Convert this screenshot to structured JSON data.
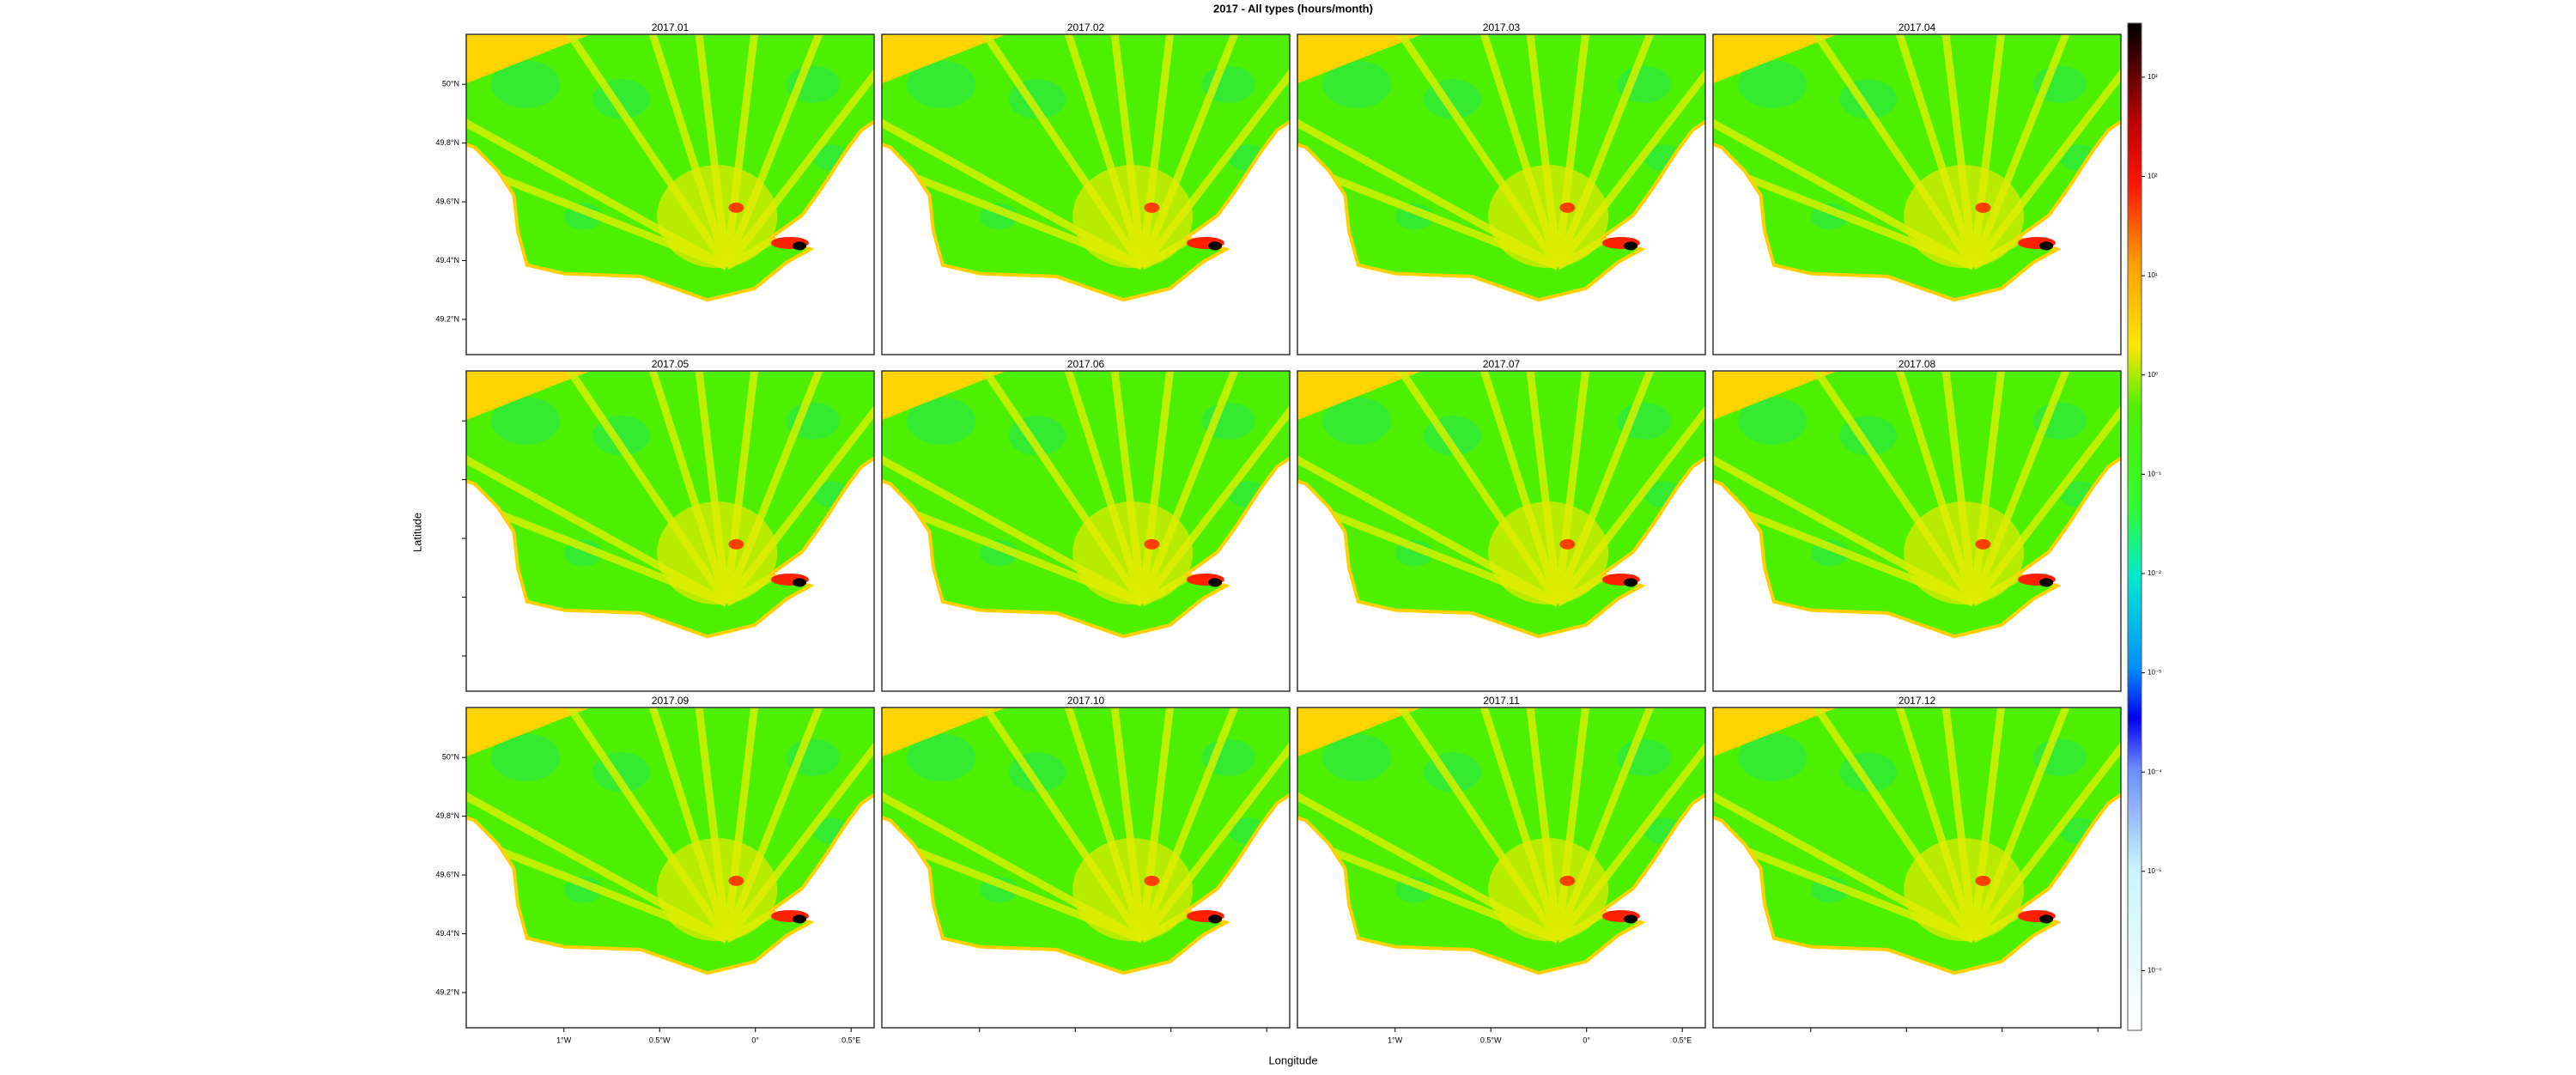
{
  "chart_data": {
    "type": "map",
    "title": "2017 - All types (hours/month)",
    "xlabel": "Longitude",
    "ylabel": "Latitude",
    "panels": [
      {
        "title": "2017.01"
      },
      {
        "title": "2017.02"
      },
      {
        "title": "2017.03"
      },
      {
        "title": "2017.04"
      },
      {
        "title": "2017.05"
      },
      {
        "title": "2017.06"
      },
      {
        "title": "2017.07"
      },
      {
        "title": "2017.08"
      },
      {
        "title": "2017.09"
      },
      {
        "title": "2017.10"
      },
      {
        "title": "2017.11"
      },
      {
        "title": "2017.12"
      }
    ],
    "xlim": [
      -1.51,
      0.62
    ],
    "ylim": [
      49.08,
      50.17
    ],
    "xticks": [
      {
        "value": -1,
        "label": "1°W"
      },
      {
        "value": -0.5,
        "label": "0.5°W"
      },
      {
        "value": 0,
        "label": "0°"
      },
      {
        "value": 0.5,
        "label": "0.5°E"
      }
    ],
    "yticks": [
      {
        "value": 49.2,
        "label": "49.2°N"
      },
      {
        "value": 49.4,
        "label": "49.4°N"
      },
      {
        "value": 49.6,
        "label": "49.6°N"
      },
      {
        "value": 49.8,
        "label": "49.8°N"
      },
      {
        "value": 50,
        "label": "50°N"
      }
    ],
    "colorbar": {
      "log_scale": true,
      "lim": [
        2.5e-07,
        3500
      ],
      "ticks": [
        {
          "value": 1e-06,
          "label": "10⁻⁶"
        },
        {
          "value": 1e-05,
          "label": "10⁻⁵"
        },
        {
          "value": 0.0001,
          "label": "10⁻⁴"
        },
        {
          "value": 0.001,
          "label": "10⁻³"
        },
        {
          "value": 0.01,
          "label": "10⁻²"
        },
        {
          "value": 0.1,
          "label": "10⁻¹"
        },
        {
          "value": 1,
          "label": "10⁰"
        },
        {
          "value": 10,
          "label": "10¹"
        },
        {
          "value": 100,
          "label": "10²"
        },
        {
          "value": 1000,
          "label": "10³"
        }
      ]
    }
  }
}
